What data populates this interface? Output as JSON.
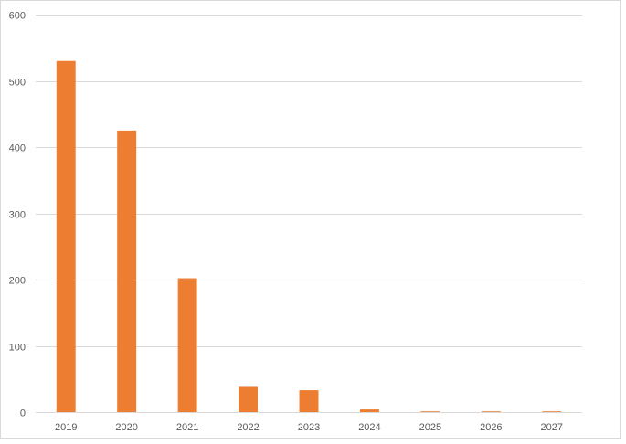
{
  "chart_data": {
    "type": "bar",
    "categories": [
      "2019",
      "2020",
      "2021",
      "2022",
      "2023",
      "2024",
      "2025",
      "2026",
      "2027"
    ],
    "values": [
      530,
      425,
      202,
      38,
      33,
      4,
      1,
      1,
      1
    ],
    "ylim": [
      0,
      600
    ],
    "yticks": [
      0,
      100,
      200,
      300,
      400,
      500,
      600
    ],
    "grid": true,
    "legend": "none",
    "bar_color": "#ED7D31",
    "grid_color": "#d9d9d9",
    "axis_color": "#d9d9d9",
    "text_color": "#595959"
  }
}
